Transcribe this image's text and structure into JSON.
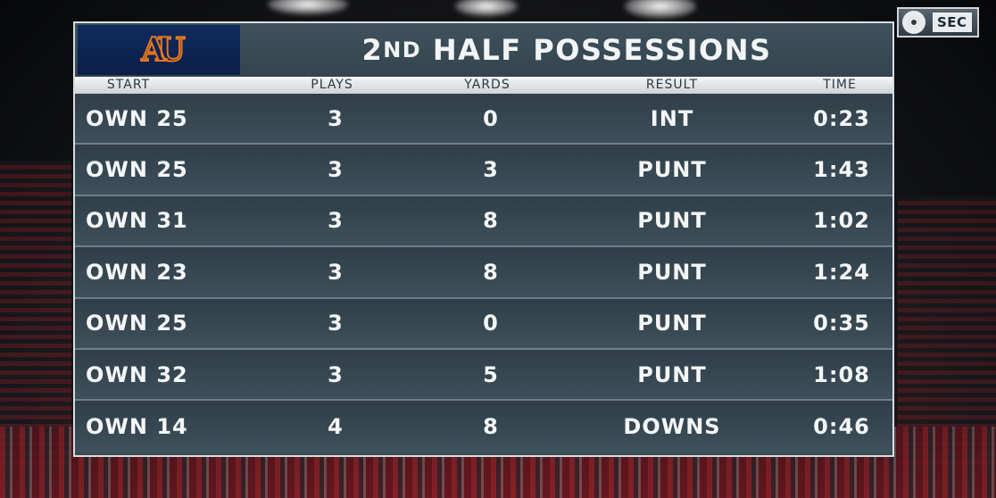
{
  "network": {
    "bug_text": "SEC"
  },
  "graphic": {
    "logo_text": "AU",
    "title_prefix": "2",
    "title_suffix": "ND",
    "title_main": "HALF POSSESSIONS",
    "columns": [
      "START",
      "PLAYS",
      "YARDS",
      "RESULT",
      "TIME"
    ],
    "rows": [
      {
        "start": "OWN 25",
        "plays": "3",
        "yards": "0",
        "result": "INT",
        "time": "0:23"
      },
      {
        "start": "OWN 25",
        "plays": "3",
        "yards": "3",
        "result": "PUNT",
        "time": "1:43"
      },
      {
        "start": "OWN 31",
        "plays": "3",
        "yards": "8",
        "result": "PUNT",
        "time": "1:02"
      },
      {
        "start": "OWN 23",
        "plays": "3",
        "yards": "8",
        "result": "PUNT",
        "time": "1:24"
      },
      {
        "start": "OWN 25",
        "plays": "3",
        "yards": "0",
        "result": "PUNT",
        "time": "0:35"
      },
      {
        "start": "OWN 32",
        "plays": "3",
        "yards": "5",
        "result": "PUNT",
        "time": "1:08"
      },
      {
        "start": "OWN 14",
        "plays": "4",
        "yards": "8",
        "result": "DOWNS",
        "time": "0:46"
      }
    ]
  },
  "colors": {
    "panel": "#3b4b55",
    "logo_navy": "#0c2354",
    "logo_orange": "#e87722",
    "header_strip": "#e6eaec"
  }
}
